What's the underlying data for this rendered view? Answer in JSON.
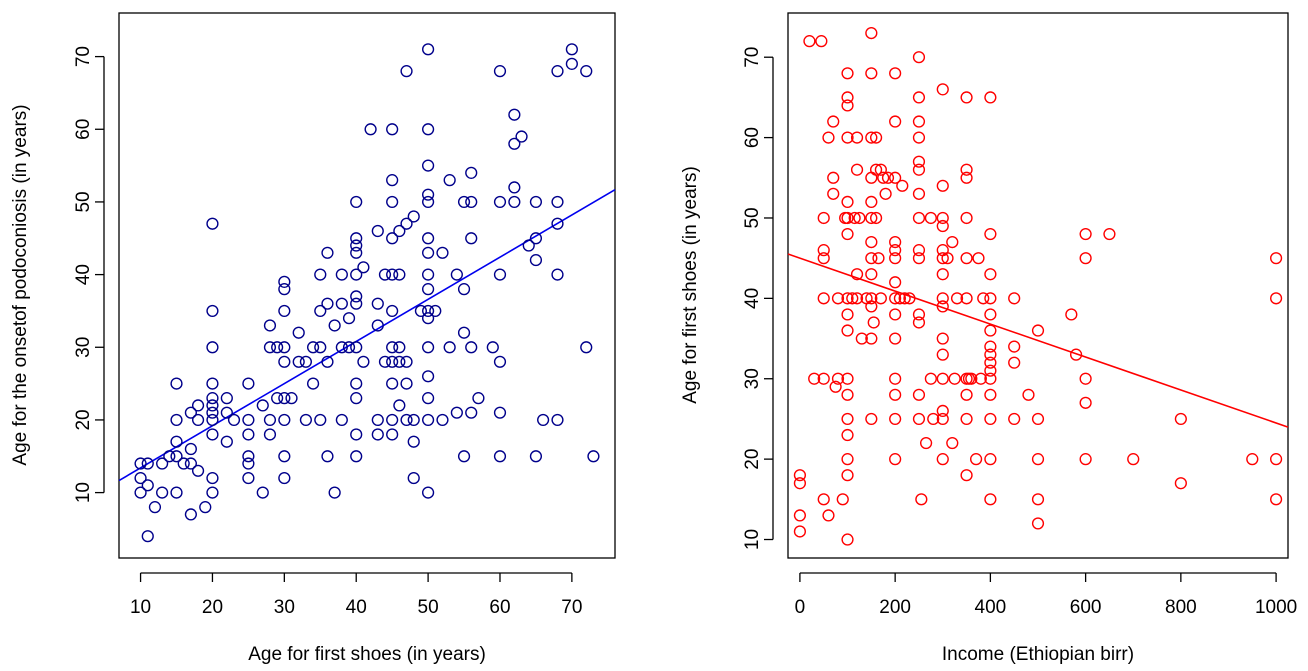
{
  "chart_data": [
    {
      "type": "scatter",
      "xlabel": "Age for first shoes (in years)",
      "ylabel": "Age for the onsetof podoconiosis (in years)",
      "xlim": [
        7,
        76
      ],
      "ylim": [
        1,
        76
      ],
      "xticks": [
        10,
        20,
        30,
        40,
        50,
        60,
        70
      ],
      "yticks": [
        10,
        20,
        30,
        40,
        50,
        60,
        70
      ],
      "grid": false,
      "color": "#00008b",
      "fit_line": {
        "intercept": 7.6,
        "slope": 0.58,
        "color": "#0000ee"
      },
      "points": [
        [
          10,
          14
        ],
        [
          10,
          12
        ],
        [
          10,
          10
        ],
        [
          11,
          14
        ],
        [
          11,
          11
        ],
        [
          11,
          4
        ],
        [
          12,
          8
        ],
        [
          13,
          10
        ],
        [
          13,
          14
        ],
        [
          14,
          15
        ],
        [
          15,
          25
        ],
        [
          15,
          20
        ],
        [
          15,
          17
        ],
        [
          15,
          15
        ],
        [
          15,
          10
        ],
        [
          16,
          14
        ],
        [
          17,
          21
        ],
        [
          17,
          16
        ],
        [
          17,
          14
        ],
        [
          17,
          7
        ],
        [
          18,
          22
        ],
        [
          18,
          20
        ],
        [
          18,
          13
        ],
        [
          19,
          8
        ],
        [
          20,
          47
        ],
        [
          20,
          35
        ],
        [
          20,
          30
        ],
        [
          20,
          25
        ],
        [
          20,
          23
        ],
        [
          20,
          22
        ],
        [
          20,
          21
        ],
        [
          20,
          20
        ],
        [
          20,
          18
        ],
        [
          20,
          12
        ],
        [
          20,
          10
        ],
        [
          22,
          23
        ],
        [
          22,
          21
        ],
        [
          22,
          17
        ],
        [
          23,
          20
        ],
        [
          25,
          25
        ],
        [
          25,
          20
        ],
        [
          25,
          18
        ],
        [
          25,
          15
        ],
        [
          25,
          14
        ],
        [
          25,
          12
        ],
        [
          27,
          10
        ],
        [
          27,
          22
        ],
        [
          28,
          33
        ],
        [
          28,
          30
        ],
        [
          28,
          20
        ],
        [
          28,
          18
        ],
        [
          29,
          23
        ],
        [
          29,
          30
        ],
        [
          30,
          39
        ],
        [
          30,
          38
        ],
        [
          30,
          35
        ],
        [
          30,
          30
        ],
        [
          30,
          28
        ],
        [
          30,
          23
        ],
        [
          30,
          20
        ],
        [
          30,
          15
        ],
        [
          30,
          12
        ],
        [
          31,
          23
        ],
        [
          32,
          32
        ],
        [
          32,
          28
        ],
        [
          33,
          28
        ],
        [
          33,
          20
        ],
        [
          34,
          30
        ],
        [
          34,
          25
        ],
        [
          35,
          40
        ],
        [
          35,
          35
        ],
        [
          35,
          30
        ],
        [
          35,
          20
        ],
        [
          36,
          43
        ],
        [
          36,
          36
        ],
        [
          36,
          28
        ],
        [
          36,
          15
        ],
        [
          37,
          33
        ],
        [
          37,
          10
        ],
        [
          38,
          40
        ],
        [
          38,
          36
        ],
        [
          38,
          30
        ],
        [
          38,
          20
        ],
        [
          39,
          34
        ],
        [
          39,
          30
        ],
        [
          40,
          50
        ],
        [
          40,
          45
        ],
        [
          40,
          44
        ],
        [
          40,
          43
        ],
        [
          40,
          40
        ],
        [
          40,
          37
        ],
        [
          40,
          36
        ],
        [
          40,
          30
        ],
        [
          40,
          25
        ],
        [
          40,
          23
        ],
        [
          40,
          18
        ],
        [
          40,
          15
        ],
        [
          41,
          41
        ],
        [
          41,
          28
        ],
        [
          42,
          60
        ],
        [
          43,
          46
        ],
        [
          43,
          36
        ],
        [
          43,
          33
        ],
        [
          43,
          20
        ],
        [
          43,
          18
        ],
        [
          44,
          40
        ],
        [
          44,
          28
        ],
        [
          45,
          60
        ],
        [
          45,
          53
        ],
        [
          45,
          50
        ],
        [
          45,
          45
        ],
        [
          45,
          40
        ],
        [
          45,
          35
        ],
        [
          45,
          30
        ],
        [
          45,
          28
        ],
        [
          45,
          25
        ],
        [
          45,
          20
        ],
        [
          45,
          18
        ],
        [
          46,
          46
        ],
        [
          46,
          40
        ],
        [
          46,
          30
        ],
        [
          46,
          28
        ],
        [
          46,
          22
        ],
        [
          47,
          68
        ],
        [
          47,
          47
        ],
        [
          47,
          28
        ],
        [
          47,
          25
        ],
        [
          47,
          20
        ],
        [
          48,
          48
        ],
        [
          48,
          17
        ],
        [
          48,
          12
        ],
        [
          48,
          20
        ],
        [
          49,
          35
        ],
        [
          50,
          71
        ],
        [
          50,
          60
        ],
        [
          50,
          55
        ],
        [
          50,
          51
        ],
        [
          50,
          50
        ],
        [
          50,
          45
        ],
        [
          50,
          43
        ],
        [
          50,
          40
        ],
        [
          50,
          38
        ],
        [
          50,
          35
        ],
        [
          50,
          34
        ],
        [
          50,
          30
        ],
        [
          50,
          26
        ],
        [
          50,
          23
        ],
        [
          50,
          20
        ],
        [
          50,
          10
        ],
        [
          51,
          35
        ],
        [
          52,
          43
        ],
        [
          52,
          20
        ],
        [
          53,
          53
        ],
        [
          53,
          30
        ],
        [
          54,
          40
        ],
        [
          54,
          21
        ],
        [
          55,
          50
        ],
        [
          55,
          38
        ],
        [
          55,
          32
        ],
        [
          55,
          15
        ],
        [
          56,
          54
        ],
        [
          56,
          50
        ],
        [
          56,
          45
        ],
        [
          56,
          30
        ],
        [
          56,
          21
        ],
        [
          57,
          23
        ],
        [
          59,
          30
        ],
        [
          60,
          68
        ],
        [
          60,
          50
        ],
        [
          60,
          40
        ],
        [
          60,
          28
        ],
        [
          60,
          21
        ],
        [
          60,
          15
        ],
        [
          62,
          62
        ],
        [
          62,
          58
        ],
        [
          62,
          52
        ],
        [
          62,
          50
        ],
        [
          63,
          59
        ],
        [
          64,
          44
        ],
        [
          65,
          50
        ],
        [
          65,
          45
        ],
        [
          65,
          42
        ],
        [
          65,
          15
        ],
        [
          66,
          20
        ],
        [
          68,
          68
        ],
        [
          68,
          50
        ],
        [
          68,
          47
        ],
        [
          68,
          40
        ],
        [
          68,
          20
        ],
        [
          70,
          71
        ],
        [
          70,
          69
        ],
        [
          72,
          68
        ],
        [
          72,
          30
        ],
        [
          73,
          15
        ]
      ]
    },
    {
      "type": "scatter",
      "xlabel": "Income (Ethiopian birr)",
      "ylabel": "Age for first shoes (in years)",
      "xlim": [
        -25,
        1025
      ],
      "ylim": [
        7.7,
        75.5
      ],
      "xticks": [
        0,
        200,
        400,
        600,
        800,
        1000
      ],
      "yticks": [
        10,
        20,
        30,
        40,
        50,
        60,
        70
      ],
      "grid": false,
      "color": "#ff0000",
      "fit_line": {
        "intercept": 45,
        "slope": -0.0205,
        "color": "#ff0000"
      },
      "points": [
        [
          0,
          18
        ],
        [
          0,
          17
        ],
        [
          0,
          13
        ],
        [
          0,
          11
        ],
        [
          20,
          72
        ],
        [
          30,
          30
        ],
        [
          45,
          72
        ],
        [
          50,
          50
        ],
        [
          50,
          46
        ],
        [
          50,
          45
        ],
        [
          50,
          40
        ],
        [
          50,
          30
        ],
        [
          50,
          15
        ],
        [
          60,
          60
        ],
        [
          60,
          13
        ],
        [
          70,
          62
        ],
        [
          70,
          55
        ],
        [
          70,
          53
        ],
        [
          75,
          29
        ],
        [
          80,
          40
        ],
        [
          80,
          30
        ],
        [
          90,
          15
        ],
        [
          95,
          50
        ],
        [
          100,
          68
        ],
        [
          100,
          65
        ],
        [
          100,
          64
        ],
        [
          100,
          60
        ],
        [
          100,
          52
        ],
        [
          100,
          50
        ],
        [
          100,
          48
        ],
        [
          100,
          40
        ],
        [
          100,
          38
        ],
        [
          100,
          36
        ],
        [
          100,
          30
        ],
        [
          100,
          28
        ],
        [
          100,
          25
        ],
        [
          100,
          23
        ],
        [
          100,
          20
        ],
        [
          100,
          18
        ],
        [
          100,
          10
        ],
        [
          110,
          40
        ],
        [
          115,
          50
        ],
        [
          120,
          60
        ],
        [
          120,
          56
        ],
        [
          120,
          43
        ],
        [
          120,
          40
        ],
        [
          125,
          50
        ],
        [
          130,
          35
        ],
        [
          140,
          40
        ],
        [
          150,
          73
        ],
        [
          150,
          68
        ],
        [
          150,
          60
        ],
        [
          150,
          55
        ],
        [
          150,
          52
        ],
        [
          150,
          50
        ],
        [
          150,
          47
        ],
        [
          150,
          45
        ],
        [
          150,
          43
        ],
        [
          150,
          40
        ],
        [
          150,
          39
        ],
        [
          150,
          35
        ],
        [
          150,
          25
        ],
        [
          155,
          37
        ],
        [
          160,
          60
        ],
        [
          160,
          56
        ],
        [
          160,
          50
        ],
        [
          165,
          45
        ],
        [
          170,
          40
        ],
        [
          170,
          56
        ],
        [
          175,
          55
        ],
        [
          180,
          53
        ],
        [
          185,
          55
        ],
        [
          200,
          68
        ],
        [
          200,
          62
        ],
        [
          200,
          55
        ],
        [
          200,
          47
        ],
        [
          200,
          46
        ],
        [
          200,
          45
        ],
        [
          200,
          42
        ],
        [
          200,
          40
        ],
        [
          200,
          38
        ],
        [
          200,
          35
        ],
        [
          200,
          30
        ],
        [
          200,
          28
        ],
        [
          200,
          25
        ],
        [
          200,
          20
        ],
        [
          210,
          40
        ],
        [
          215,
          54
        ],
        [
          220,
          40
        ],
        [
          230,
          40
        ],
        [
          250,
          70
        ],
        [
          250,
          65
        ],
        [
          250,
          62
        ],
        [
          250,
          60
        ],
        [
          250,
          57
        ],
        [
          250,
          56
        ],
        [
          250,
          53
        ],
        [
          250,
          50
        ],
        [
          250,
          46
        ],
        [
          250,
          45
        ],
        [
          250,
          38
        ],
        [
          250,
          37
        ],
        [
          250,
          28
        ],
        [
          250,
          25
        ],
        [
          255,
          15
        ],
        [
          265,
          22
        ],
        [
          275,
          50
        ],
        [
          275,
          30
        ],
        [
          280,
          25
        ],
        [
          300,
          66
        ],
        [
          300,
          54
        ],
        [
          300,
          50
        ],
        [
          300,
          49
        ],
        [
          300,
          46
        ],
        [
          300,
          45
        ],
        [
          300,
          43
        ],
        [
          300,
          40
        ],
        [
          300,
          39
        ],
        [
          300,
          35
        ],
        [
          300,
          33
        ],
        [
          300,
          30
        ],
        [
          300,
          26
        ],
        [
          300,
          25
        ],
        [
          300,
          20
        ],
        [
          310,
          45
        ],
        [
          320,
          47
        ],
        [
          320,
          22
        ],
        [
          325,
          30
        ],
        [
          330,
          40
        ],
        [
          350,
          65
        ],
        [
          350,
          56
        ],
        [
          350,
          55
        ],
        [
          350,
          50
        ],
        [
          350,
          45
        ],
        [
          350,
          40
        ],
        [
          350,
          30
        ],
        [
          350,
          28
        ],
        [
          350,
          25
        ],
        [
          350,
          18
        ],
        [
          355,
          30
        ],
        [
          360,
          30
        ],
        [
          370,
          20
        ],
        [
          375,
          45
        ],
        [
          380,
          30
        ],
        [
          385,
          40
        ],
        [
          400,
          65
        ],
        [
          400,
          48
        ],
        [
          400,
          43
        ],
        [
          400,
          40
        ],
        [
          400,
          38
        ],
        [
          400,
          36
        ],
        [
          400,
          34
        ],
        [
          400,
          33
        ],
        [
          400,
          32
        ],
        [
          400,
          31
        ],
        [
          400,
          30
        ],
        [
          400,
          28
        ],
        [
          400,
          25
        ],
        [
          400,
          20
        ],
        [
          400,
          15
        ],
        [
          450,
          40
        ],
        [
          450,
          34
        ],
        [
          450,
          32
        ],
        [
          450,
          25
        ],
        [
          480,
          28
        ],
        [
          500,
          36
        ],
        [
          500,
          25
        ],
        [
          500,
          20
        ],
        [
          500,
          15
        ],
        [
          500,
          12
        ],
        [
          570,
          38
        ],
        [
          580,
          33
        ],
        [
          600,
          48
        ],
        [
          600,
          45
        ],
        [
          600,
          30
        ],
        [
          600,
          27
        ],
        [
          600,
          20
        ],
        [
          650,
          48
        ],
        [
          700,
          20
        ],
        [
          800,
          25
        ],
        [
          800,
          17
        ],
        [
          950,
          20
        ],
        [
          1000,
          45
        ],
        [
          1000,
          40
        ],
        [
          1000,
          20
        ],
        [
          1000,
          15
        ]
      ]
    }
  ]
}
